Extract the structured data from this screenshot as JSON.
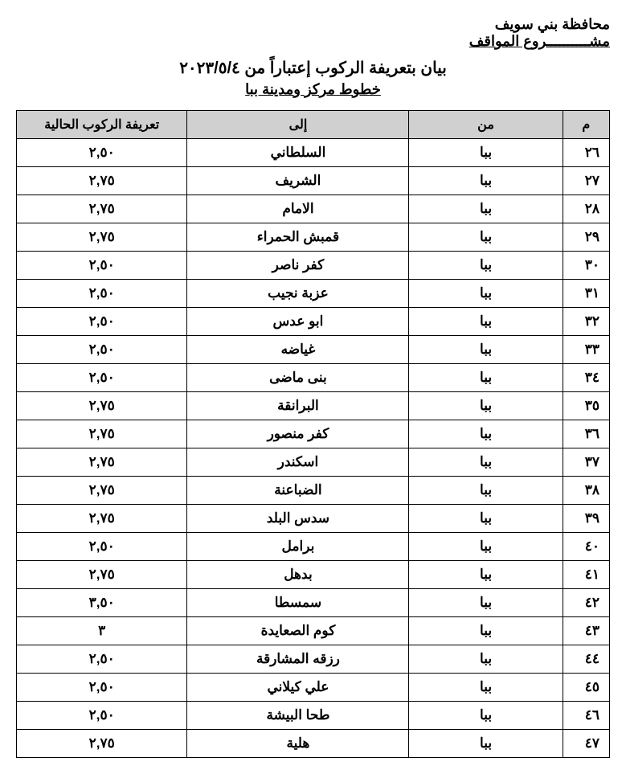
{
  "header": {
    "governorate": "محافظة بني سويف",
    "project": "مشــــــــــروع المواقف"
  },
  "title": {
    "main": "بيان بتعريفة الركوب إعتباراً من ٢٠٢٣/٥/٤",
    "sub": "خطوط مركز ومدينة ببا"
  },
  "table": {
    "headers": {
      "num": "م",
      "from": "من",
      "to": "إلى",
      "fare": "تعريفة الركوب الحالية"
    },
    "rows": [
      {
        "num": "٢٦",
        "from": "ببا",
        "to": "السلطاني",
        "fare": "٢,٥٠"
      },
      {
        "num": "٢٧",
        "from": "ببا",
        "to": "الشريف",
        "fare": "٢,٧٥"
      },
      {
        "num": "٢٨",
        "from": "ببا",
        "to": "الامام",
        "fare": "٢,٧٥"
      },
      {
        "num": "٢٩",
        "from": "ببا",
        "to": "قمبش الحمراء",
        "fare": "٢,٧٥"
      },
      {
        "num": "٣٠",
        "from": "ببا",
        "to": "كفر ناصر",
        "fare": "٢,٥٠"
      },
      {
        "num": "٣١",
        "from": "ببا",
        "to": "عزبة نجيب",
        "fare": "٢,٥٠"
      },
      {
        "num": "٣٢",
        "from": "ببا",
        "to": "ابو عدس",
        "fare": "٢,٥٠"
      },
      {
        "num": "٣٣",
        "from": "ببا",
        "to": "غياضه",
        "fare": "٢,٥٠"
      },
      {
        "num": "٣٤",
        "from": "ببا",
        "to": "بنى ماضى",
        "fare": "٢,٥٠"
      },
      {
        "num": "٣٥",
        "from": "ببا",
        "to": "البرانقة",
        "fare": "٢,٧٥"
      },
      {
        "num": "٣٦",
        "from": "ببا",
        "to": "كفر منصور",
        "fare": "٢,٧٥"
      },
      {
        "num": "٣٧",
        "from": "ببا",
        "to": "اسكندر",
        "fare": "٢,٧٥"
      },
      {
        "num": "٣٨",
        "from": "ببا",
        "to": "الضباعنة",
        "fare": "٢,٧٥"
      },
      {
        "num": "٣٩",
        "from": "ببا",
        "to": "سدس البلد",
        "fare": "٢,٧٥"
      },
      {
        "num": "٤٠",
        "from": "ببا",
        "to": "برامل",
        "fare": "٢,٥٠"
      },
      {
        "num": "٤١",
        "from": "ببا",
        "to": "بدهل",
        "fare": "٢,٧٥"
      },
      {
        "num": "٤٢",
        "from": "ببا",
        "to": "سمسطا",
        "fare": "٣,٥٠"
      },
      {
        "num": "٤٣",
        "from": "ببا",
        "to": "كوم الصعايدة",
        "fare": "٣"
      },
      {
        "num": "٤٤",
        "from": "ببا",
        "to": "رزقه المشارقة",
        "fare": "٢,٥٠"
      },
      {
        "num": "٤٥",
        "from": "ببا",
        "to": "علي كيلاني",
        "fare": "٢,٥٠"
      },
      {
        "num": "٤٦",
        "from": "ببا",
        "to": "طحا البيشة",
        "fare": "٢,٥٠"
      },
      {
        "num": "٤٧",
        "from": "ببا",
        "to": "هلية",
        "fare": "٢,٧٥"
      }
    ]
  },
  "styling": {
    "page_bg": "#ffffff",
    "border_color": "#000000",
    "header_bg": "#d0d0d0",
    "text_color": "#000000",
    "body_font_size": 17,
    "header_font_size": 16,
    "title_font_size": 20,
    "subtitle_font_size": 18,
    "col_widths": {
      "num": 55,
      "from": 180,
      "to": 260,
      "fare": 200
    }
  }
}
